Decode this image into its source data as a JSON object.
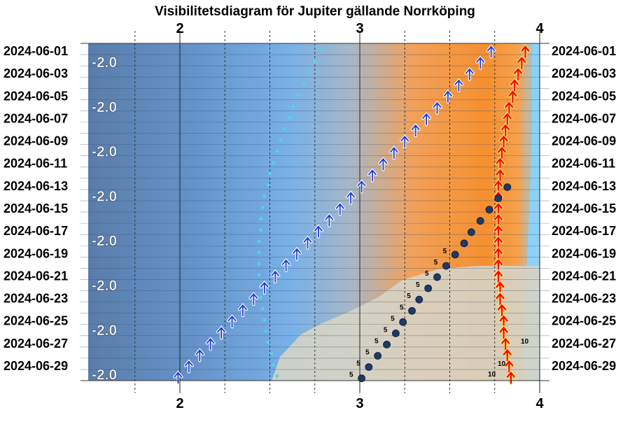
{
  "chart_data": {
    "type": "scatter",
    "title": "Visibilitetsdiagram för Jupiter gällande Norrköping",
    "x_ticks": [
      "2",
      "3",
      "4"
    ],
    "xlim": [
      1.5,
      4.05
    ],
    "dates": [
      "2024-06-01",
      "2024-06-02",
      "2024-06-03",
      "2024-06-04",
      "2024-06-05",
      "2024-06-06",
      "2024-06-07",
      "2024-06-08",
      "2024-06-09",
      "2024-06-10",
      "2024-06-11",
      "2024-06-12",
      "2024-06-13",
      "2024-06-14",
      "2024-06-15",
      "2024-06-16",
      "2024-06-17",
      "2024-06-18",
      "2024-06-19",
      "2024-06-20",
      "2024-06-21",
      "2024-06-22",
      "2024-06-23",
      "2024-06-24",
      "2024-06-25",
      "2024-06-26",
      "2024-06-27",
      "2024-06-28",
      "2024-06-29",
      "2024-06-30"
    ],
    "date_labels": [
      "2024-06-01",
      "2024-06-03",
      "2024-06-05",
      "2024-06-07",
      "2024-06-09",
      "2024-06-11",
      "2024-06-13",
      "2024-06-15",
      "2024-06-17",
      "2024-06-19",
      "2024-06-21",
      "2024-06-23",
      "2024-06-25",
      "2024-06-27",
      "2024-06-29"
    ],
    "magnitude_labels": [
      "-2.0",
      "-2.0",
      "-2.0",
      "-2.0",
      "-2.0",
      "-2.0",
      "-2.0",
      "-2.0"
    ],
    "colors": {
      "night": "#5b7fae",
      "twilight": "#7fb3e6",
      "sun": "#f6a04b",
      "daylight": "#8dd2f6",
      "jupiter_rise_arrow": "#1d3ed2",
      "sun_rise_arrow": "#ff0000",
      "jupiter_path_dot": "#1f3a66",
      "twilight_dot": "#4fd6e8"
    },
    "series": [
      {
        "values": [
          3.73,
          3.67,
          3.61,
          3.55,
          3.49,
          3.43,
          3.37,
          3.31,
          3.25,
          3.19,
          3.13,
          3.07,
          3.01,
          2.95,
          2.89,
          2.83,
          2.77,
          2.71,
          2.65,
          2.59,
          2.53,
          2.47,
          2.41,
          2.35,
          2.29,
          2.23,
          2.17,
          2.11,
          2.05,
          1.99
        ]
      },
      {
        "values": [
          3.92,
          3.9,
          3.88,
          3.86,
          3.85,
          3.83,
          3.82,
          3.81,
          3.8,
          3.79,
          3.78,
          3.78,
          3.77,
          3.77,
          3.77,
          3.77,
          3.77,
          3.77,
          3.77,
          3.77,
          3.77,
          3.78,
          3.78,
          3.79,
          3.8,
          3.8,
          3.81,
          3.82,
          3.83,
          3.84
        ]
      },
      {
        "values": [
          2.78,
          2.75,
          2.72,
          2.69,
          2.66,
          2.63,
          2.61,
          2.58,
          2.56,
          2.54,
          2.52,
          2.5,
          2.49,
          2.47,
          2.46,
          2.45,
          2.45,
          2.44,
          2.44,
          2.44,
          2.44,
          2.45,
          2.45,
          2.46,
          2.47,
          2.48,
          2.49,
          2.51,
          2.52,
          2.54
        ]
      },
      {
        "start_index": 12,
        "values": [
          3.82,
          3.77,
          3.72,
          3.67,
          3.62,
          3.58,
          3.53,
          3.48,
          3.43,
          3.38,
          3.33,
          3.29,
          3.24,
          3.2,
          3.15,
          3.1,
          3.05,
          3.01
        ]
      }
    ],
    "mag_annotations": [
      "5",
      "10"
    ]
  }
}
